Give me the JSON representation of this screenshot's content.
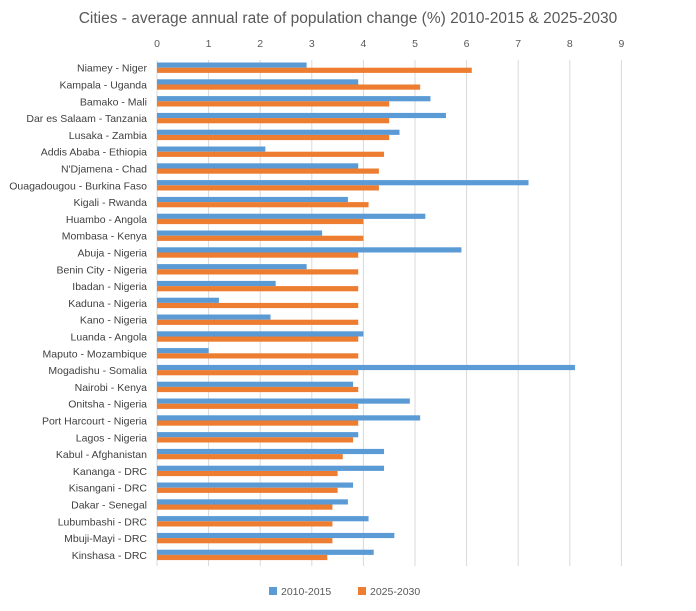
{
  "chart_data": {
    "type": "bar",
    "orientation": "horizontal",
    "title": "Cities - average annual rate of population change (%) 2010-2015 & 2025-2030",
    "xlabel": "",
    "ylabel": "",
    "xlim": [
      0,
      9
    ],
    "x_ticks": [
      "0",
      "1",
      "2",
      "3",
      "4",
      "5",
      "6",
      "7",
      "8",
      "9"
    ],
    "x_axis_position": "top",
    "grid": true,
    "legend_position": "bottom",
    "categories": [
      "Niamey - Niger",
      "Kampala - Uganda",
      "Bamako - Mali",
      "Dar es Salaam - Tanzania",
      "Lusaka - Zambia",
      "Addis Ababa - Ethiopia",
      "N'Djamena - Chad",
      "Ouagadougou - Burkina Faso",
      "Kigali - Rwanda",
      "Huambo - Angola",
      "Mombasa - Kenya",
      "Abuja - Nigeria",
      "Benin City - Nigeria",
      "Ibadan - Nigeria",
      "Kaduna - Nigeria",
      "Kano - Nigeria",
      "Luanda - Angola",
      "Maputo - Mozambique",
      "Mogadishu - Somalia",
      "Nairobi - Kenya",
      "Onitsha - Nigeria",
      "Port Harcourt - Nigeria",
      "Lagos - Nigeria",
      "Kabul - Afghanistan",
      "Kananga - DRC",
      "Kisangani - DRC",
      "Dakar - Senegal",
      "Lubumbashi - DRC",
      "Mbuji-Mayi - DRC",
      "Kinshasa - DRC"
    ],
    "series": [
      {
        "name": "2010-2015",
        "color": "#5B9BD5",
        "values": [
          2.9,
          3.9,
          5.3,
          5.6,
          4.7,
          2.1,
          3.9,
          7.2,
          3.7,
          5.2,
          3.2,
          5.9,
          2.9,
          2.3,
          1.2,
          2.2,
          4.0,
          1.0,
          8.1,
          3.8,
          4.9,
          5.1,
          3.9,
          4.4,
          4.4,
          3.8,
          3.7,
          4.1,
          4.6,
          4.2
        ]
      },
      {
        "name": "2025-2030",
        "color": "#ED7D31",
        "values": [
          6.1,
          5.1,
          4.5,
          4.5,
          4.5,
          4.4,
          4.3,
          4.3,
          4.1,
          4.0,
          4.0,
          3.9,
          3.9,
          3.9,
          3.9,
          3.9,
          3.9,
          3.9,
          3.9,
          3.9,
          3.9,
          3.9,
          3.8,
          3.6,
          3.5,
          3.5,
          3.4,
          3.4,
          3.4,
          3.3
        ]
      }
    ]
  }
}
